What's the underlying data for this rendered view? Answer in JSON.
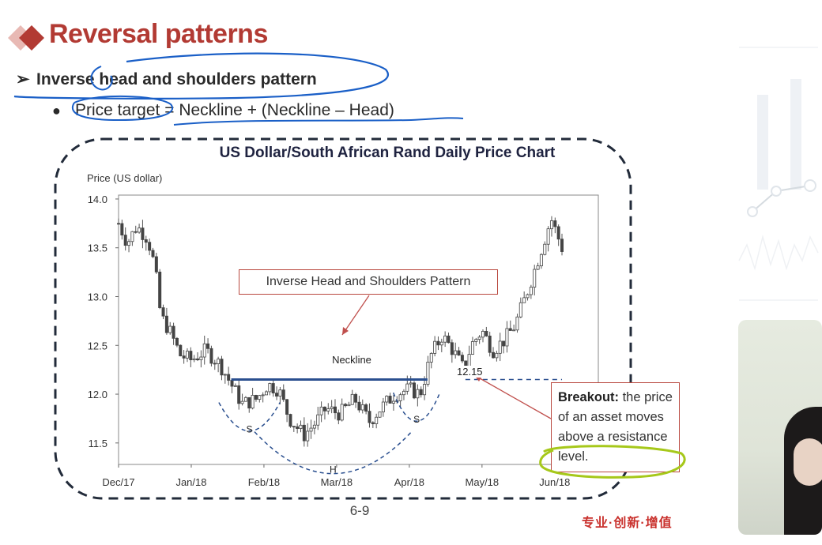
{
  "slide": {
    "title": "Reversal patterns",
    "bullet1": "Inverse head and shoulders pattern",
    "bullet2_term": "Price target",
    "bullet2_rest": " = Neckline + (Neckline – Head)",
    "bullet1_marker": "➢",
    "bullet2_marker": "●",
    "page_number": "6-9",
    "footer": "专业·创新·增值",
    "accent_color": "#b23a33",
    "ink_color": "#1a5fc7",
    "highlight_color": "#a6c81a"
  },
  "chart_data": {
    "type": "candlestick",
    "title": "US Dollar/South African Rand Daily Price Chart",
    "ylabel": "Price (US dollar)",
    "ylim": [
      11.3,
      14.0
    ],
    "yticks": [
      14.0,
      13.5,
      13.0,
      12.5,
      12.0,
      11.5
    ],
    "ytick_labels": [
      "14.0",
      "13.5",
      "13.0",
      "12.5",
      "12.0",
      "11.5"
    ],
    "xticks": [
      "Dec/17",
      "Jan/18",
      "Feb/18",
      "Mar/18",
      "Apr/18",
      "May/18",
      "Jun/18"
    ],
    "x_range_months": [
      0,
      6.6
    ],
    "price_path": [
      [
        0.0,
        13.75
      ],
      [
        0.12,
        13.55
      ],
      [
        0.25,
        13.72
      ],
      [
        0.4,
        13.6
      ],
      [
        0.5,
        13.3
      ],
      [
        0.58,
        12.8
      ],
      [
        0.7,
        12.65
      ],
      [
        0.85,
        12.4
      ],
      [
        1.0,
        12.35
      ],
      [
        1.2,
        12.45
      ],
      [
        1.4,
        12.3
      ],
      [
        1.55,
        12.1
      ],
      [
        1.7,
        11.9
      ],
      [
        1.9,
        11.95
      ],
      [
        2.05,
        12.1
      ],
      [
        2.2,
        12.05
      ],
      [
        2.35,
        11.75
      ],
      [
        2.55,
        11.58
      ],
      [
        2.7,
        11.7
      ],
      [
        2.85,
        11.85
      ],
      [
        3.05,
        11.8
      ],
      [
        3.25,
        11.95
      ],
      [
        3.45,
        11.72
      ],
      [
        3.6,
        11.85
      ],
      [
        3.8,
        12.0
      ],
      [
        4.0,
        12.05
      ],
      [
        4.15,
        12.0
      ],
      [
        4.3,
        12.4
      ],
      [
        4.45,
        12.6
      ],
      [
        4.6,
        12.45
      ],
      [
        4.75,
        12.25
      ],
      [
        4.85,
        12.5
      ],
      [
        5.0,
        12.65
      ],
      [
        5.15,
        12.45
      ],
      [
        5.3,
        12.55
      ],
      [
        5.45,
        12.7
      ],
      [
        5.6,
        13.0
      ],
      [
        5.8,
        13.45
      ],
      [
        5.95,
        13.8
      ],
      [
        6.1,
        13.5
      ]
    ],
    "neckline": {
      "label": "Neckline",
      "value": 12.15,
      "value_label": "12.15",
      "x_start": 1.55,
      "x_end": 4.25
    },
    "pattern_points": [
      {
        "label": "S",
        "x": 1.8,
        "low": 11.85
      },
      {
        "label": "H",
        "x": 2.95,
        "low": 11.55
      },
      {
        "label": "S",
        "x": 4.1,
        "low": 11.95
      }
    ],
    "annotations": {
      "pattern_label": "Inverse Head and Shoulders Pattern",
      "breakout_title": "Breakout:",
      "breakout_text": " the price of an asset moves above a resistance level."
    },
    "grid": false,
    "legend": "none"
  }
}
